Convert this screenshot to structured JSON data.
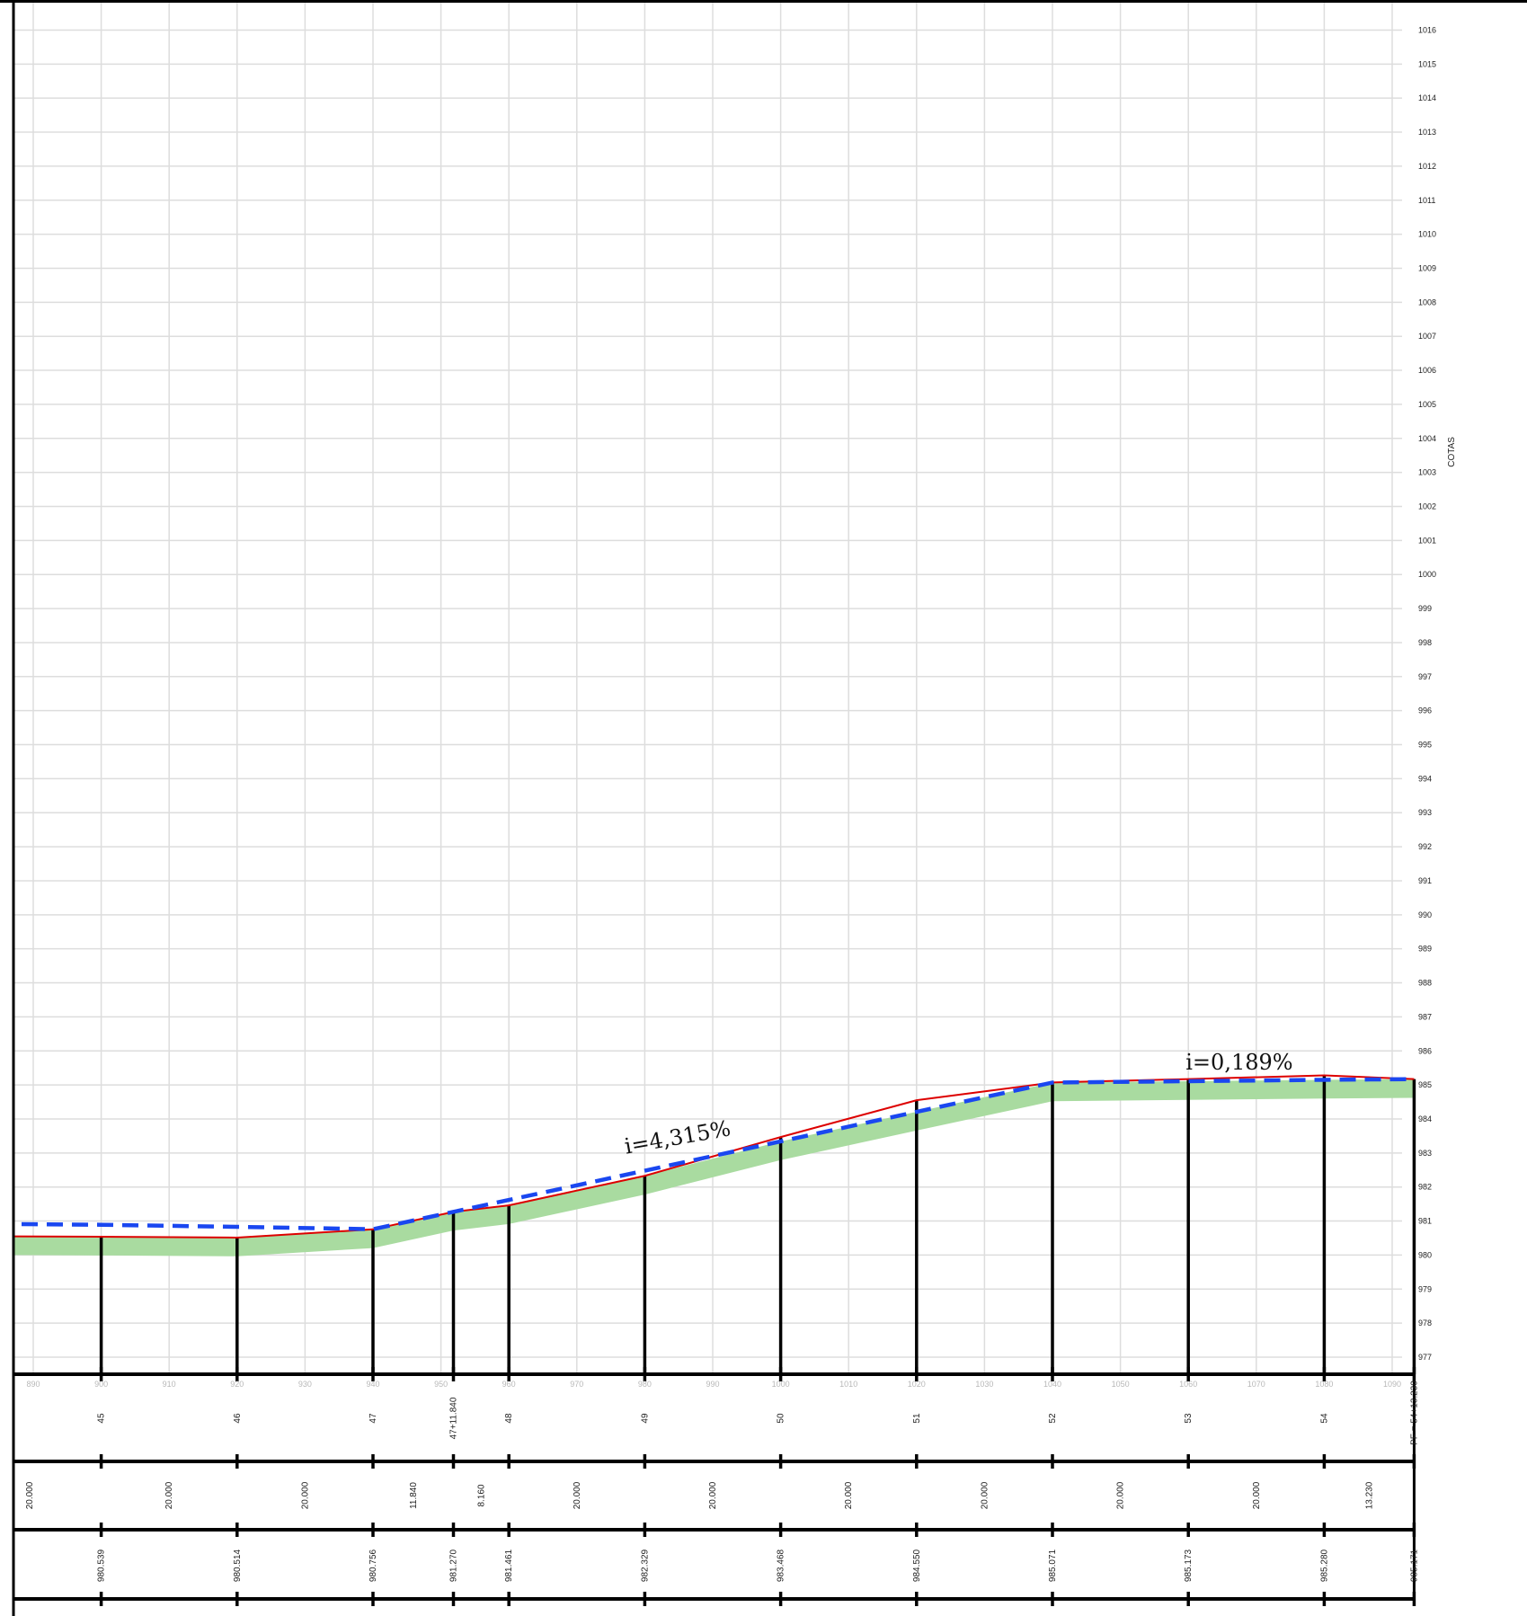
{
  "profile": {
    "y_axis_label": "COTAS",
    "y_range": [
      977,
      1016
    ],
    "x_range": [
      890,
      1090
    ],
    "x_ticks": [
      890,
      900,
      910,
      920,
      930,
      940,
      950,
      960,
      970,
      980,
      990,
      1000,
      1010,
      1020,
      1030,
      1040,
      1050,
      1060,
      1070,
      1080,
      1090
    ],
    "stations": [
      {
        "x": 900,
        "label": "45",
        "partial": "20.000",
        "elevation": "980.539",
        "terrain": 980.539,
        "grade": 980.89
      },
      {
        "x": 920,
        "label": "46",
        "partial": "20.000",
        "elevation": "980.514",
        "terrain": 980.514,
        "grade": 980.83
      },
      {
        "x": 940,
        "label": "47",
        "partial": "20.000",
        "elevation": "980.756",
        "terrain": 980.756,
        "grade": 980.76
      },
      {
        "x": 951.84,
        "label": "47+11.840",
        "partial": "11.840",
        "elevation": "981.270",
        "terrain": 981.27,
        "grade": 981.27
      },
      {
        "x": 960,
        "label": "48",
        "partial": "8.160",
        "elevation": "981.461",
        "terrain": 981.461,
        "grade": 981.62
      },
      {
        "x": 980,
        "label": "49",
        "partial": "20.000",
        "elevation": "982.329",
        "terrain": 982.329,
        "grade": 982.48
      },
      {
        "x": 1000,
        "label": "50",
        "partial": "20.000",
        "elevation": "983.468",
        "terrain": 983.468,
        "grade": 983.34
      },
      {
        "x": 1020,
        "label": "51",
        "partial": "20.000",
        "elevation": "984.550",
        "terrain": 984.55,
        "grade": 984.21
      },
      {
        "x": 1040,
        "label": "52",
        "partial": "20.000",
        "elevation": "985.071",
        "terrain": 985.071,
        "grade": 985.07
      },
      {
        "x": 1060,
        "label": "53",
        "partial": "20.000",
        "elevation": "985.173",
        "terrain": 985.173,
        "grade": 985.11
      },
      {
        "x": 1080,
        "label": "54",
        "partial": "20.000",
        "elevation": "985.280",
        "terrain": 985.28,
        "grade": 985.15
      },
      {
        "x": 1093.23,
        "label": "PF = 54+13.230",
        "partial": "13.230",
        "elevation": "985.171",
        "terrain": 985.171,
        "grade": 985.171
      }
    ],
    "start": {
      "x": 890,
      "partial": "20.000",
      "terrain": 980.55,
      "grade": 980.91
    },
    "slope_labels": [
      {
        "text": "i=4,315%",
        "x": 985,
        "y": 983.25
      },
      {
        "text": "i=0,189%",
        "x": 1067.5,
        "y": 985.45
      }
    ],
    "colors": {
      "terrain": "#dd0000",
      "grade": "#1a47f0",
      "fill": "#a9dba0",
      "grid": "#dddddd",
      "axis": "#000000"
    }
  }
}
